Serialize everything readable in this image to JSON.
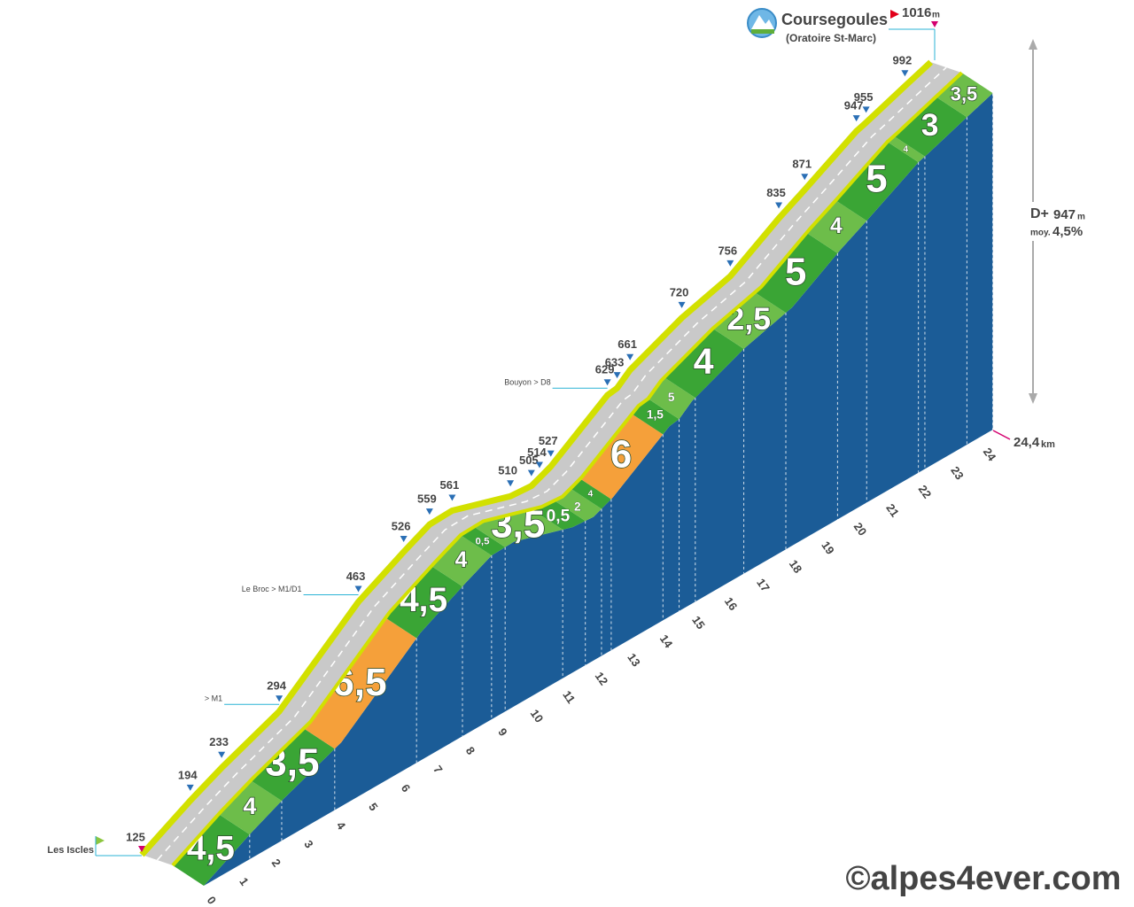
{
  "chart_data": {
    "type": "climb-profile",
    "title": "Coursegoules",
    "subtitle": "(Oratoire St-Marc)",
    "start_name": "Les Iscles",
    "alt_unit": "m",
    "dist_unit": "km",
    "distance": {
      "value": 24.4,
      "label": "24,4"
    },
    "gain_label": "D+",
    "gain": 947,
    "avg_label": "moy.",
    "avg": {
      "value": 4.5,
      "label": "4,5%"
    },
    "points": [
      {
        "km": 0,
        "alt": 125
      },
      {
        "km": 1.5,
        "alt": 194
      },
      {
        "km": 2.47,
        "alt": 233
      },
      {
        "km": 4.25,
        "alt": 294,
        "note": "> M1"
      },
      {
        "km": 6.7,
        "alt": 463,
        "note": "Le Broc > M1/D1"
      },
      {
        "km": 8.1,
        "alt": 526
      },
      {
        "km": 8.9,
        "alt": 559
      },
      {
        "km": 9.6,
        "alt": 561
      },
      {
        "km": 11.4,
        "alt": 510
      },
      {
        "km": 12.05,
        "alt": 505
      },
      {
        "km": 12.3,
        "alt": 514
      },
      {
        "km": 12.65,
        "alt": 527
      },
      {
        "km": 14.4,
        "alt": 629,
        "note": "Bouyon > D8"
      },
      {
        "km": 14.7,
        "alt": 633
      },
      {
        "km": 15.1,
        "alt": 661
      },
      {
        "km": 16.7,
        "alt": 720
      },
      {
        "km": 18.2,
        "alt": 756
      },
      {
        "km": 19.7,
        "alt": 835
      },
      {
        "km": 20.5,
        "alt": 871
      },
      {
        "km": 22.1,
        "alt": 947
      },
      {
        "km": 22.4,
        "alt": 955
      },
      {
        "km": 23.6,
        "alt": 992
      },
      {
        "km": 24.4,
        "alt": 1016
      }
    ],
    "segments": [
      {
        "from": 0,
        "to": 1.42,
        "grade": 4.5,
        "label": "4,5"
      },
      {
        "from": 1.42,
        "to": 2.41,
        "grade": 4
      },
      {
        "from": 2.41,
        "to": 4.05,
        "grade": 3.5,
        "label": "3,5"
      },
      {
        "from": 4.05,
        "to": 6.58,
        "grade": 6.5,
        "label": "6,5"
      },
      {
        "from": 6.58,
        "to": 8.0,
        "grade": 4.5,
        "label": "4,5"
      },
      {
        "from": 8.0,
        "to": 8.9,
        "grade": 4
      },
      {
        "from": 8.9,
        "to": 9.32,
        "grade": 0.5,
        "label": "0,5"
      },
      {
        "from": 9.32,
        "to": 11.1,
        "grade": 3.5,
        "label": "3,5"
      },
      {
        "from": 11.1,
        "to": 11.8,
        "grade": 0.5,
        "label": "0,5"
      },
      {
        "from": 11.8,
        "to": 12.3,
        "grade": 2
      },
      {
        "from": 12.3,
        "to": 12.6,
        "grade": 4
      },
      {
        "from": 12.6,
        "to": 14.2,
        "grade": 6
      },
      {
        "from": 14.2,
        "to": 14.7,
        "grade": 1.5,
        "label": "1,5"
      },
      {
        "from": 14.7,
        "to": 15.2,
        "grade": 5
      },
      {
        "from": 15.2,
        "to": 16.7,
        "grade": 4
      },
      {
        "from": 16.7,
        "to": 18.0,
        "grade": 2.5,
        "label": "2,5"
      },
      {
        "from": 18.0,
        "to": 19.6,
        "grade": 5
      },
      {
        "from": 19.6,
        "to": 20.5,
        "grade": 4
      },
      {
        "from": 20.5,
        "to": 22.1,
        "grade": 5
      },
      {
        "from": 22.1,
        "to": 22.3,
        "grade": 4
      },
      {
        "from": 22.3,
        "to": 23.6,
        "grade": 3
      },
      {
        "from": 23.6,
        "to": 24.4,
        "grade": 3.5,
        "label": "3,5"
      }
    ],
    "km_ticks": [
      0,
      1,
      2,
      3,
      4,
      5,
      6,
      7,
      8,
      9,
      10,
      11,
      12,
      13,
      14,
      15,
      16,
      17,
      18,
      19,
      20,
      21,
      22,
      23,
      24
    ],
    "color": "#3aa535",
    "alt_color": "#6dbd4a",
    "steep_color": "#f5a03a",
    "steep_from": 6,
    "base_color": "#1b5c97",
    "copyright": "©alpes4ever.com"
  }
}
